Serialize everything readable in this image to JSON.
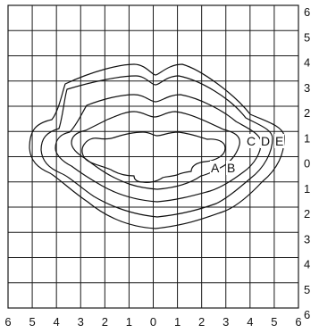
{
  "x_ticks": [
    "6",
    "5",
    "4",
    "3",
    "2",
    "1",
    "0",
    "1",
    "2",
    "3",
    "4",
    "5",
    "6"
  ],
  "y_ticks": [
    "6",
    "5",
    "4",
    "3",
    "2",
    "1",
    "0",
    "1",
    "2",
    "3",
    "4",
    "5",
    "6"
  ],
  "curve_labels": [
    "A",
    "B",
    "C",
    "D",
    "E"
  ]
}
